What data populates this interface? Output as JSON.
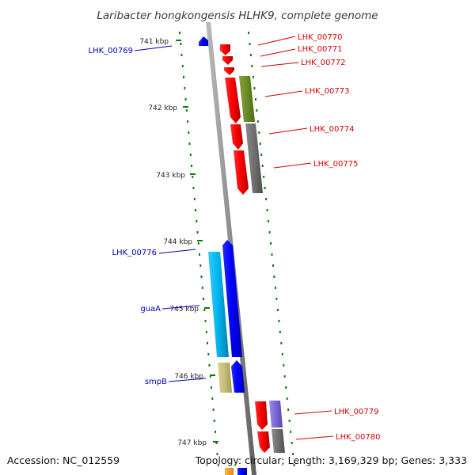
{
  "title": "Laribacter hongkongensis HLHK9, complete genome",
  "footer": {
    "accession": "Accession: NC_012559",
    "topology": "Topology: circular; Length: 3,169,329 bp; Genes: 3,333"
  },
  "colors": {
    "forward_label": "#d40000",
    "reverse_label": "#0000b4",
    "tick": "#0b7a0b",
    "backbone": "#8c8c8c"
  },
  "kbp_ticks": [
    {
      "id": "t741",
      "label": "741 kbp"
    },
    {
      "id": "t742",
      "label": "742 kbp"
    },
    {
      "id": "t743",
      "label": "743 kbp"
    },
    {
      "id": "t744",
      "label": "744 kbp"
    },
    {
      "id": "t745",
      "label": "745 kbp"
    },
    {
      "id": "t746",
      "label": "746 kbp"
    },
    {
      "id": "t747",
      "label": "747 kbp"
    }
  ],
  "gene_labels": [
    {
      "id": "lhk-00769",
      "text": "LHK_00769",
      "strand": "reverse"
    },
    {
      "id": "lhk-00770",
      "text": "LHK_00770",
      "strand": "forward"
    },
    {
      "id": "lhk-00771",
      "text": "LHK_00771",
      "strand": "forward"
    },
    {
      "id": "lhk-00772",
      "text": "LHK_00772",
      "strand": "forward"
    },
    {
      "id": "lhk-00773",
      "text": "LHK_00773",
      "strand": "forward"
    },
    {
      "id": "lhk-00774",
      "text": "LHK_00774",
      "strand": "forward"
    },
    {
      "id": "lhk-00775",
      "text": "LHK_00775",
      "strand": "forward"
    },
    {
      "id": "lhk-00776",
      "text": "LHK_00776",
      "strand": "reverse"
    },
    {
      "id": "guaa",
      "text": "guaA",
      "strand": "reverse"
    },
    {
      "id": "smpb",
      "text": "smpB",
      "strand": "reverse"
    },
    {
      "id": "lhk-00779",
      "text": "LHK_00779",
      "strand": "forward"
    },
    {
      "id": "lhk-00780",
      "text": "LHK_00780",
      "strand": "forward"
    }
  ]
}
